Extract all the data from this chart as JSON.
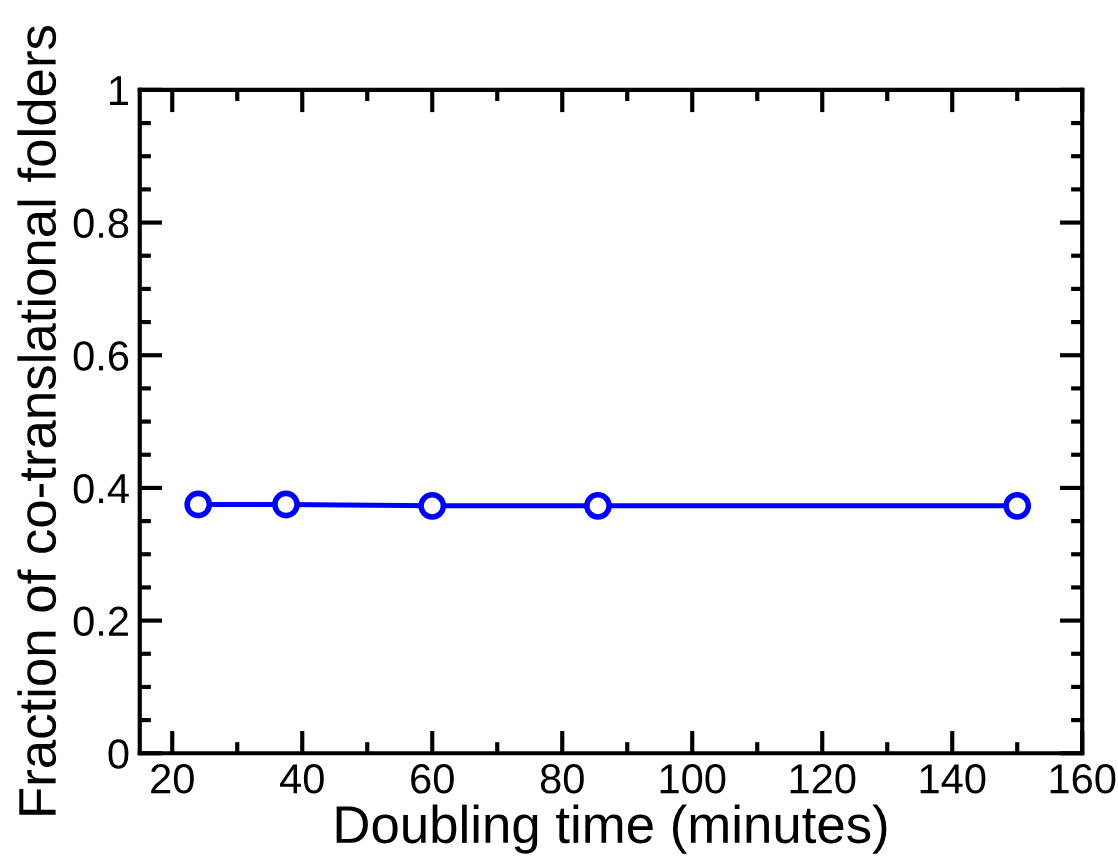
{
  "chart_data": {
    "type": "line",
    "xlabel": "Doubling time (minutes)",
    "ylabel": "Fraction of co-translational folders",
    "x": [
      24,
      37.5,
      60,
      85.5,
      150
    ],
    "series": [
      {
        "color": "#0000ff",
        "values": [
          0.375,
          0.375,
          0.373,
          0.373,
          0.373
        ]
      }
    ],
    "xlim": [
      15,
      160
    ],
    "xticks": [
      20,
      40,
      60,
      80,
      100,
      120,
      140,
      160
    ],
    "ylim": [
      0,
      1
    ],
    "yticks": [
      0,
      0.2,
      0.4,
      0.6,
      0.8,
      1
    ],
    "marker": "circle",
    "line_style": "solid",
    "grid": false,
    "legend": false
  }
}
